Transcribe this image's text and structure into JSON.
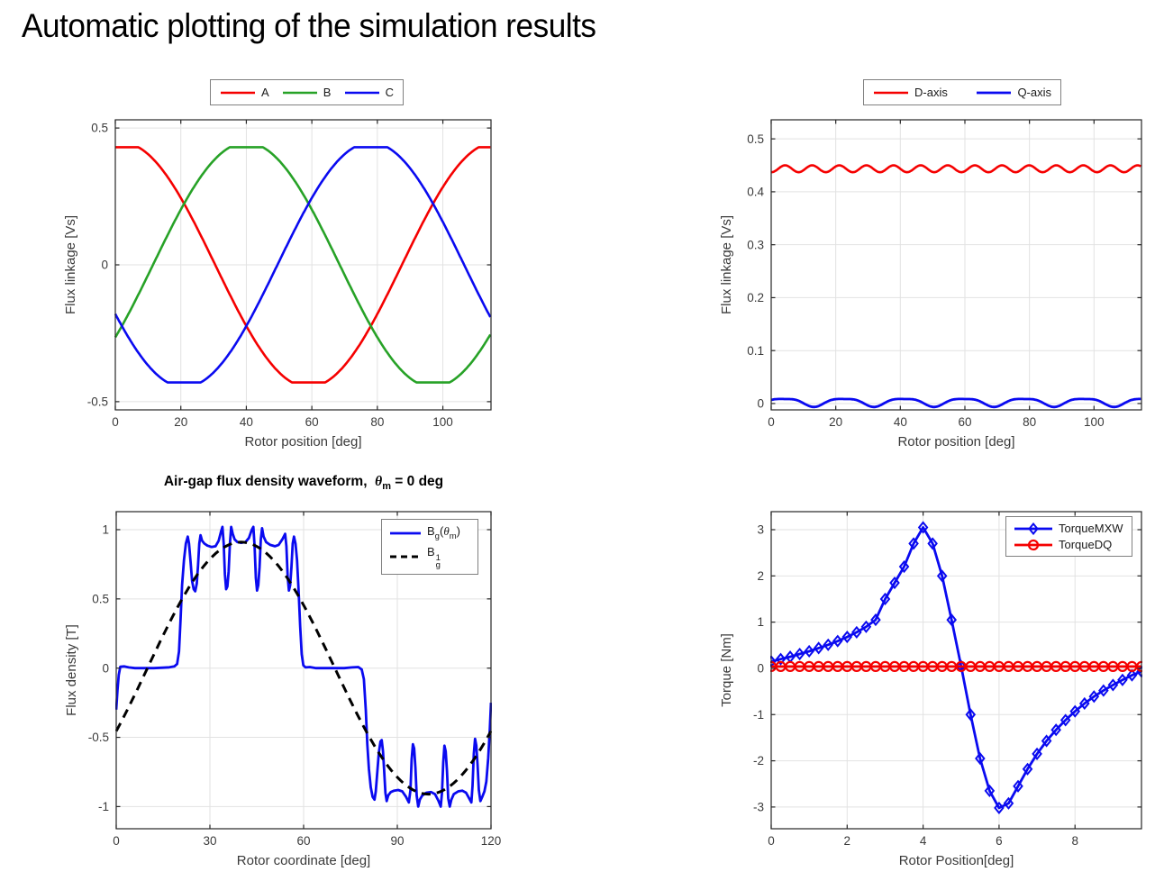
{
  "page_title": "Automatic plotting of the simulation results",
  "chart_data": [
    {
      "id": "abc_flux",
      "type": "line",
      "xlabel": "Rotor position [deg]",
      "ylabel": "Flux linkage [Vs]",
      "xlim": [
        0,
        114.7
      ],
      "ylim": [
        -0.53,
        0.53
      ],
      "xticks": [
        0,
        20,
        40,
        60,
        80,
        100
      ],
      "yticks": [
        -0.5,
        0,
        0.5
      ],
      "grid": true,
      "legend_position": "above",
      "series": [
        {
          "name": "A",
          "color": "#f50000",
          "width": 2.6,
          "synth": {
            "base": 0,
            "clip": 0.43,
            "range": [
              0,
              114.7
            ],
            "step": 0.25,
            "terms": [
              {
                "amp": 0.447,
                "period": 114,
                "peak_at": 2
              }
            ]
          }
        },
        {
          "name": "B",
          "color": "#27a227",
          "width": 2.6,
          "synth": {
            "base": 0,
            "clip": 0.43,
            "range": [
              0,
              114.7
            ],
            "step": 0.25,
            "terms": [
              {
                "amp": 0.447,
                "period": 114,
                "peak_at": 40
              }
            ]
          }
        },
        {
          "name": "C",
          "color": "#0a0af0",
          "width": 2.6,
          "synth": {
            "base": 0,
            "clip": 0.43,
            "range": [
              0,
              114.7
            ],
            "step": 0.25,
            "terms": [
              {
                "amp": 0.447,
                "period": 114,
                "peak_at": 78
              }
            ]
          }
        }
      ]
    },
    {
      "id": "dq_flux",
      "type": "line",
      "xlabel": "Rotor position [deg]",
      "ylabel": "Flux linkage [Vs]",
      "xlim": [
        0,
        114.7
      ],
      "ylim": [
        -0.012,
        0.536
      ],
      "xticks": [
        0,
        20,
        40,
        60,
        80,
        100
      ],
      "yticks": [
        0,
        0.1,
        0.2,
        0.3,
        0.4,
        0.5
      ],
      "grid": true,
      "legend_position": "above",
      "series": [
        {
          "name": "D-axis",
          "color": "#f50000",
          "width": 2.6,
          "synth": {
            "base": 0.4435,
            "range": [
              0,
              114.7
            ],
            "step": 0.25,
            "terms": [
              {
                "amp": 0.0065,
                "period": 8.4,
                "peak_at": 4.3
              }
            ]
          }
        },
        {
          "name": "Q-axis",
          "color": "#0a0af0",
          "width": 2.8,
          "synth": {
            "base": 0.003,
            "range": [
              0,
              114.7
            ],
            "step": 0.25,
            "terms": [
              {
                "amp": 0.0075,
                "period": 18.6,
                "peak_at": 3.9
              },
              {
                "amp": 0.002,
                "period": 9.3,
                "peak_at": 8.6
              }
            ]
          }
        }
      ]
    },
    {
      "id": "airgap",
      "type": "line",
      "title_parts": {
        "main": "Air-gap flux density waveform,",
        "theta": "θ",
        "theta_sub": "m",
        "rest": "= 0 deg"
      },
      "xlabel": "Rotor coordinate [deg]",
      "ylabel": "Flux density [T]",
      "xlim": [
        0,
        120
      ],
      "ylim": [
        -1.16,
        1.13
      ],
      "xticks": [
        0,
        30,
        60,
        90,
        120
      ],
      "yticks": [
        -1,
        -0.5,
        0,
        0.5,
        1
      ],
      "grid": true,
      "legend_position": "inside-top-right",
      "legend_rich": [
        {
          "base": "B",
          "sub": "g",
          "paren_open": "(",
          "theta": "θ",
          "theta_sub": "m",
          "paren_close": ")"
        },
        {
          "base": "B",
          "sub": "g",
          "sup": "1"
        }
      ],
      "series": [
        {
          "name": "Bg(theta_m)",
          "color": "#0a0af0",
          "width": 2.8,
          "points": [
            [
              0,
              -0.3
            ],
            [
              0.4,
              -0.16
            ],
            [
              0.8,
              -0.05
            ],
            [
              1.3,
              0.01
            ],
            [
              2.5,
              0.012
            ],
            [
              4,
              0.005
            ],
            [
              6,
              0
            ],
            [
              9,
              0
            ],
            [
              12,
              0
            ],
            [
              15,
              0.003
            ],
            [
              17,
              0.006
            ],
            [
              18.6,
              0.012
            ],
            [
              19.5,
              0.03
            ],
            [
              20.1,
              0.12
            ],
            [
              20.6,
              0.35
            ],
            [
              21.1,
              0.6
            ],
            [
              21.7,
              0.78
            ],
            [
              22.3,
              0.9
            ],
            [
              22.9,
              0.95
            ],
            [
              23.3,
              0.9
            ],
            [
              23.8,
              0.77
            ],
            [
              24.3,
              0.63
            ],
            [
              24.8,
              0.57
            ],
            [
              25.3,
              0.555
            ],
            [
              25.8,
              0.61
            ],
            [
              26.2,
              0.74
            ],
            [
              26.6,
              0.9
            ],
            [
              27,
              0.96
            ],
            [
              27.5,
              0.92
            ],
            [
              28.2,
              0.9
            ],
            [
              29.2,
              0.885
            ],
            [
              30.5,
              0.875
            ],
            [
              31.8,
              0.88
            ],
            [
              32.8,
              0.92
            ],
            [
              33.6,
              0.99
            ],
            [
              34,
              1.02
            ],
            [
              34.4,
              0.9
            ],
            [
              34.8,
              0.68
            ],
            [
              35.2,
              0.57
            ],
            [
              35.6,
              0.59
            ],
            [
              36,
              0.7
            ],
            [
              36.4,
              0.9
            ],
            [
              36.8,
              1.02
            ],
            [
              37.3,
              0.97
            ],
            [
              37.9,
              0.93
            ],
            [
              38.8,
              0.91
            ],
            [
              40,
              0.905
            ],
            [
              41.4,
              0.91
            ],
            [
              42.5,
              0.94
            ],
            [
              43.4,
              1.0
            ],
            [
              43.9,
              1.02
            ],
            [
              44.3,
              0.88
            ],
            [
              44.7,
              0.65
            ],
            [
              45.1,
              0.56
            ],
            [
              45.5,
              0.6
            ],
            [
              45.9,
              0.73
            ],
            [
              46.3,
              0.93
            ],
            [
              46.7,
              1.01
            ],
            [
              47.2,
              0.95
            ],
            [
              48,
              0.91
            ],
            [
              49.3,
              0.89
            ],
            [
              50.8,
              0.88
            ],
            [
              52,
              0.89
            ],
            [
              53.2,
              0.93
            ],
            [
              54.1,
              0.97
            ],
            [
              54.5,
              0.88
            ],
            [
              54.9,
              0.66
            ],
            [
              55.3,
              0.56
            ],
            [
              55.7,
              0.6
            ],
            [
              56.1,
              0.73
            ],
            [
              56.5,
              0.9
            ],
            [
              56.9,
              0.95
            ],
            [
              57.4,
              0.9
            ],
            [
              57.9,
              0.78
            ],
            [
              58.4,
              0.55
            ],
            [
              58.9,
              0.3
            ],
            [
              59.4,
              0.1
            ],
            [
              59.9,
              0.02
            ],
            [
              60.6,
              0.005
            ],
            [
              62,
              0.008
            ],
            [
              64,
              0
            ],
            [
              67,
              0
            ],
            [
              70,
              0
            ],
            [
              73,
              0
            ],
            [
              75.5,
              0.005
            ],
            [
              77.5,
              0.008
            ],
            [
              78.6,
              -0.01
            ],
            [
              79.3,
              -0.08
            ],
            [
              79.9,
              -0.3
            ],
            [
              80.4,
              -0.55
            ],
            [
              80.9,
              -0.73
            ],
            [
              81.5,
              -0.86
            ],
            [
              82.1,
              -0.93
            ],
            [
              82.7,
              -0.95
            ],
            [
              83.1,
              -0.89
            ],
            [
              83.6,
              -0.75
            ],
            [
              84.1,
              -0.61
            ],
            [
              84.6,
              -0.53
            ],
            [
              85,
              -0.52
            ],
            [
              85.4,
              -0.6
            ],
            [
              85.8,
              -0.74
            ],
            [
              86.2,
              -0.9
            ],
            [
              86.6,
              -0.96
            ],
            [
              87.1,
              -0.92
            ],
            [
              87.9,
              -0.895
            ],
            [
              89,
              -0.885
            ],
            [
              90.3,
              -0.88
            ],
            [
              91.6,
              -0.89
            ],
            [
              92.8,
              -0.93
            ],
            [
              93.7,
              -0.97
            ],
            [
              94.2,
              -0.88
            ],
            [
              94.6,
              -0.66
            ],
            [
              95,
              -0.55
            ],
            [
              95.4,
              -0.58
            ],
            [
              95.8,
              -0.72
            ],
            [
              96.2,
              -0.92
            ],
            [
              96.7,
              -1.0
            ],
            [
              97.2,
              -0.95
            ],
            [
              98,
              -0.92
            ],
            [
              99.3,
              -0.9
            ],
            [
              100.8,
              -0.895
            ],
            [
              102.1,
              -0.91
            ],
            [
              103.2,
              -0.96
            ],
            [
              103.9,
              -1.0
            ],
            [
              104.3,
              -0.9
            ],
            [
              104.7,
              -0.68
            ],
            [
              105.1,
              -0.56
            ],
            [
              105.5,
              -0.6
            ],
            [
              105.9,
              -0.74
            ],
            [
              106.3,
              -0.94
            ],
            [
              106.8,
              -1.0
            ],
            [
              107.3,
              -0.95
            ],
            [
              108.1,
              -0.91
            ],
            [
              109.5,
              -0.89
            ],
            [
              110.8,
              -0.885
            ],
            [
              112,
              -0.9
            ],
            [
              113,
              -0.94
            ],
            [
              113.7,
              -0.97
            ],
            [
              114.1,
              -0.85
            ],
            [
              114.5,
              -0.62
            ],
            [
              114.9,
              -0.51
            ],
            [
              115.3,
              -0.56
            ],
            [
              115.7,
              -0.7
            ],
            [
              116.1,
              -0.88
            ],
            [
              116.6,
              -0.96
            ],
            [
              117.2,
              -0.93
            ],
            [
              117.9,
              -0.89
            ],
            [
              118.5,
              -0.82
            ],
            [
              119.1,
              -0.65
            ],
            [
              119.6,
              -0.45
            ],
            [
              120,
              -0.25
            ]
          ]
        },
        {
          "name": "Bg1",
          "color": "#000000",
          "width": 3,
          "dash": [
            10,
            7
          ],
          "synth": {
            "base": 0,
            "range": [
              0,
              120
            ],
            "step": 1,
            "terms": [
              {
                "amp": 0.91,
                "period": 120,
                "peak_at": 40
              }
            ]
          }
        }
      ]
    },
    {
      "id": "torque",
      "type": "line",
      "xlabel": "Rotor Position[deg]",
      "ylabel": "Torque [Nm]",
      "xlim": [
        0,
        9.75
      ],
      "ylim": [
        -3.47,
        3.39
      ],
      "xticks": [
        0,
        2,
        4,
        6,
        8
      ],
      "yticks": [
        -3,
        -2,
        -1,
        0,
        1,
        2,
        3
      ],
      "grid": true,
      "legend_position": "inside-top-right",
      "series": [
        {
          "name": "TorqueMXW",
          "color": "#0a0af0",
          "width": 2.8,
          "marker": "diamond",
          "points": [
            [
              0,
              0.15
            ],
            [
              0.25,
              0.2
            ],
            [
              0.5,
              0.25
            ],
            [
              0.75,
              0.31
            ],
            [
              1,
              0.37
            ],
            [
              1.25,
              0.44
            ],
            [
              1.5,
              0.51
            ],
            [
              1.75,
              0.59
            ],
            [
              2,
              0.68
            ],
            [
              2.25,
              0.78
            ],
            [
              2.5,
              0.9
            ],
            [
              2.75,
              1.05
            ],
            [
              3,
              1.5
            ],
            [
              3.25,
              1.85
            ],
            [
              3.5,
              2.2
            ],
            [
              3.75,
              2.7
            ],
            [
              4,
              3.05
            ],
            [
              4.25,
              2.7
            ],
            [
              4.5,
              2.0
            ],
            [
              4.75,
              1.05
            ],
            [
              5,
              0.05
            ],
            [
              5.25,
              -1.0
            ],
            [
              5.5,
              -1.95
            ],
            [
              5.75,
              -2.65
            ],
            [
              6,
              -3.02
            ],
            [
              6.25,
              -2.92
            ],
            [
              6.5,
              -2.55
            ],
            [
              6.75,
              -2.18
            ],
            [
              7,
              -1.85
            ],
            [
              7.25,
              -1.57
            ],
            [
              7.5,
              -1.33
            ],
            [
              7.75,
              -1.12
            ],
            [
              8,
              -0.93
            ],
            [
              8.25,
              -0.76
            ],
            [
              8.5,
              -0.61
            ],
            [
              8.75,
              -0.48
            ],
            [
              9,
              -0.36
            ],
            [
              9.25,
              -0.25
            ],
            [
              9.5,
              -0.15
            ],
            [
              9.75,
              -0.07
            ]
          ]
        },
        {
          "name": "TorqueDQ",
          "color": "#f50000",
          "width": 2.8,
          "marker": "circle",
          "synth": {
            "base": 0.04,
            "range": [
              0,
              9.75
            ],
            "step": 0.25,
            "terms": []
          }
        }
      ]
    }
  ]
}
